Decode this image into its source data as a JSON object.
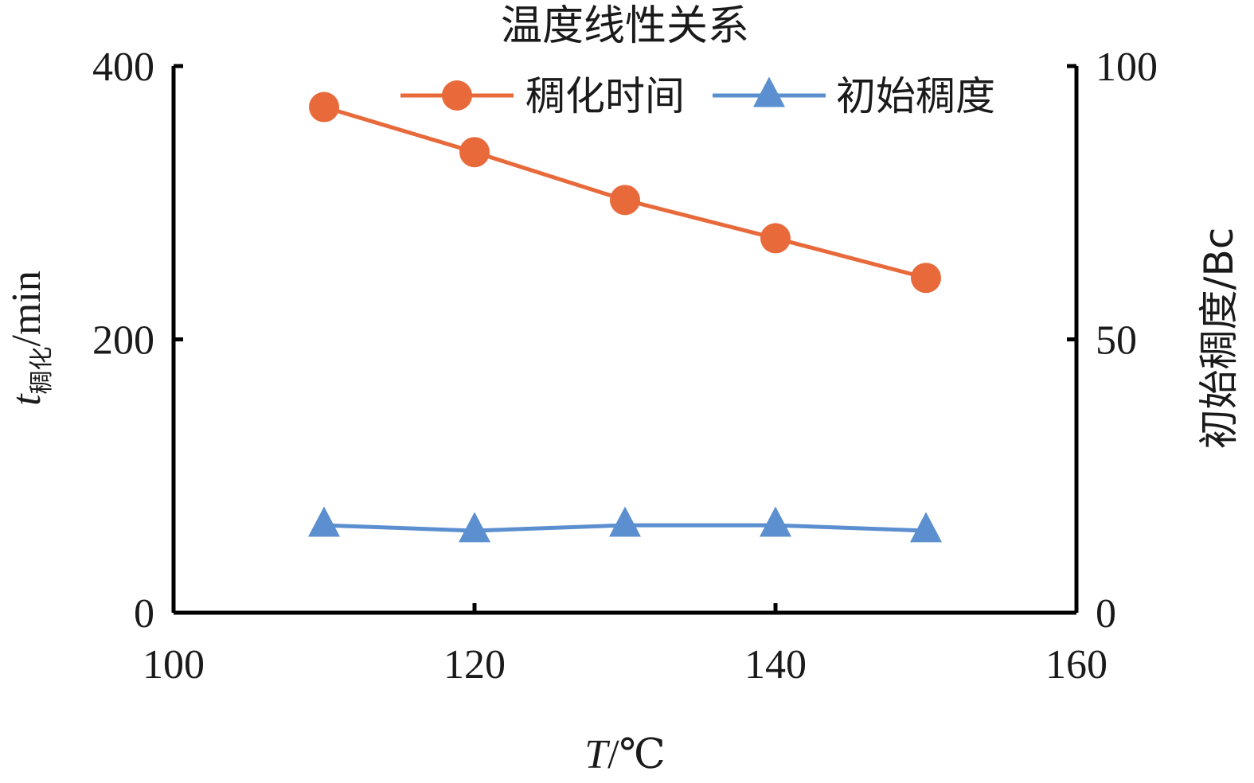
{
  "chart_data": {
    "type": "line",
    "title": "温度线性关系",
    "x": [
      110,
      120,
      130,
      140,
      150
    ],
    "xlim": [
      100,
      160
    ],
    "xticks": [
      100,
      120,
      140,
      160
    ],
    "xlabel": {
      "var": "T",
      "unit": "/℃"
    },
    "y_left": {
      "lim": [
        0,
        400
      ],
      "ticks": [
        0,
        200,
        400
      ]
    },
    "y_right": {
      "lim": [
        0,
        100
      ],
      "ticks": [
        0,
        50,
        100
      ]
    },
    "ylabel_left": {
      "var": "t",
      "sub": "稠化",
      "unit": "/min"
    },
    "ylabel_right": "初始稠度/Bc",
    "legend_position": "top",
    "grid": false,
    "series": [
      {
        "name": "稠化时间",
        "axis": "left",
        "marker": "circle",
        "color": "#E8693A",
        "values": [
          370,
          337,
          302,
          274,
          245
        ]
      },
      {
        "name": "初始稠度",
        "axis": "right",
        "marker": "triangle",
        "color": "#5B8FD0",
        "values": [
          16,
          15,
          16,
          16,
          15
        ]
      }
    ]
  }
}
